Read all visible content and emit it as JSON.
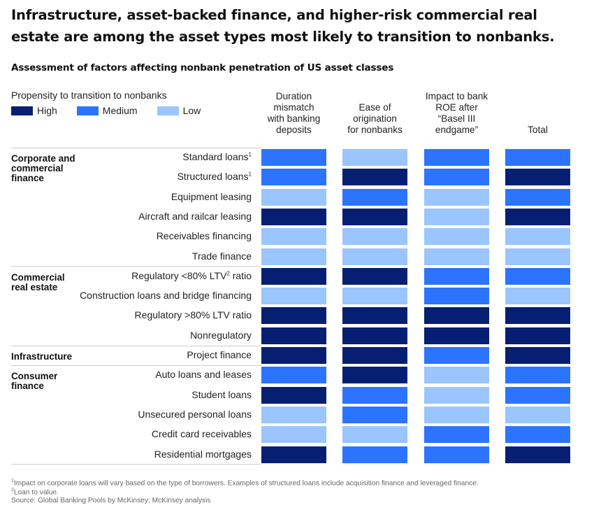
{
  "title": "Infrastructure, asset-backed finance, and higher-risk commercial real estate are among the asset types most likely to transition to nonbanks.",
  "subtitle": "Assessment of factors affecting nonbank penetration of US asset classes",
  "legend": {
    "title": "Propensity to transition to nonbanks",
    "items": [
      {
        "key": "H",
        "label": "High",
        "color": "#061F73"
      },
      {
        "key": "M",
        "label": "Medium",
        "color": "#2C74FF"
      },
      {
        "key": "L",
        "label": "Low",
        "color": "#9BC5FF"
      }
    ]
  },
  "columns": [
    [
      "Duration",
      "mismatch",
      "with banking",
      "deposits"
    ],
    [
      "Ease of",
      "origination",
      "for nonbanks"
    ],
    [
      "Impact to bank",
      "ROE after",
      "“Basel III",
      "endgame”"
    ],
    [
      "Total"
    ]
  ],
  "groups": [
    {
      "label": [
        "Corporate and",
        "commercial",
        "finance"
      ],
      "start": 0
    },
    {
      "label": [
        "Commercial",
        "real estate"
      ],
      "start": 6
    },
    {
      "label": [
        "Infrastructure"
      ],
      "start": 10
    },
    {
      "label": [
        "Consumer",
        "finance"
      ],
      "start": 11
    }
  ],
  "rows": [
    {
      "label": "Standard loans",
      "sup": "1",
      "values": [
        "M",
        "L",
        "M",
        "M"
      ]
    },
    {
      "label": "Structured loans",
      "sup": "1",
      "values": [
        "M",
        "H",
        "M",
        "H"
      ]
    },
    {
      "label": "Equipment leasing",
      "sup": "",
      "values": [
        "L",
        "M",
        "L",
        "M"
      ]
    },
    {
      "label": "Aircraft and railcar leasing",
      "sup": "",
      "values": [
        "H",
        "H",
        "L",
        "H"
      ]
    },
    {
      "label": "Receivables financing",
      "sup": "",
      "values": [
        "L",
        "L",
        "L",
        "L"
      ]
    },
    {
      "label": "Trade finance",
      "sup": "",
      "values": [
        "L",
        "L",
        "L",
        "L"
      ]
    },
    {
      "label": "Regulatory <80% LTV",
      "sup": "2",
      "suffix": " ratio",
      "values": [
        "H",
        "H",
        "M",
        "M"
      ]
    },
    {
      "label": "Construction loans and bridge financing",
      "sup": "",
      "values": [
        "L",
        "L",
        "M",
        "L"
      ]
    },
    {
      "label": "Regulatory >80% LTV ratio",
      "sup": "",
      "values": [
        "H",
        "H",
        "H",
        "H"
      ]
    },
    {
      "label": "Nonregulatory",
      "sup": "",
      "values": [
        "H",
        "H",
        "H",
        "H"
      ]
    },
    {
      "label": "Project finance",
      "sup": "",
      "values": [
        "H",
        "H",
        "M",
        "H"
      ]
    },
    {
      "label": "Auto loans and leases",
      "sup": "",
      "values": [
        "M",
        "H",
        "L",
        "M"
      ]
    },
    {
      "label": "Student loans",
      "sup": "",
      "values": [
        "H",
        "M",
        "L",
        "M"
      ]
    },
    {
      "label": "Unsecured personal loans",
      "sup": "",
      "values": [
        "L",
        "M",
        "L",
        "L"
      ]
    },
    {
      "label": "Credit card receivables",
      "sup": "",
      "values": [
        "L",
        "L",
        "M",
        "M"
      ]
    },
    {
      "label": "Residential mortgages",
      "sup": "",
      "values": [
        "H",
        "M",
        "M",
        "H"
      ]
    }
  ],
  "footnotes": [
    {
      "sup": "1",
      "text": "Impact on corporate loans will vary based on the type of borrowers. Examples of structured loans include acquisition finance and leveraged finance."
    },
    {
      "sup": "2",
      "text": "Loan to value."
    },
    {
      "sup": "",
      "text": "Source: Global Banking Pools by McKinsey; McKinsey analysis"
    }
  ],
  "chart_data": {
    "type": "heatmap",
    "title": "Assessment of factors affecting nonbank penetration of US asset classes",
    "scale": {
      "H": "High",
      "M": "Medium",
      "L": "Low"
    },
    "x": [
      "Duration mismatch with banking deposits",
      "Ease of origination for nonbanks",
      "Impact to bank ROE after “Basel III endgame”",
      "Total"
    ],
    "y": [
      "Standard loans",
      "Structured loans",
      "Equipment leasing",
      "Aircraft and railcar leasing",
      "Receivables financing",
      "Trade finance",
      "Regulatory <80% LTV ratio",
      "Construction loans and bridge financing",
      "Regulatory >80% LTV ratio",
      "Nonregulatory",
      "Project finance",
      "Auto loans and leases",
      "Student loans",
      "Unsecured personal loans",
      "Credit card receivables",
      "Residential mortgages"
    ],
    "categories_group": {
      "Corporate and commercial finance": [
        "Standard loans",
        "Structured loans",
        "Equipment leasing",
        "Aircraft and railcar leasing",
        "Receivables financing",
        "Trade finance"
      ],
      "Commercial real estate": [
        "Regulatory <80% LTV ratio",
        "Construction loans and bridge financing",
        "Regulatory >80% LTV ratio",
        "Nonregulatory"
      ],
      "Infrastructure": [
        "Project finance"
      ],
      "Consumer finance": [
        "Auto loans and leases",
        "Student loans",
        "Unsecured personal loans",
        "Credit card receivables",
        "Residential mortgages"
      ]
    },
    "values": [
      [
        "M",
        "L",
        "M",
        "M"
      ],
      [
        "M",
        "H",
        "M",
        "H"
      ],
      [
        "L",
        "M",
        "L",
        "M"
      ],
      [
        "H",
        "H",
        "L",
        "H"
      ],
      [
        "L",
        "L",
        "L",
        "L"
      ],
      [
        "L",
        "L",
        "L",
        "L"
      ],
      [
        "H",
        "H",
        "M",
        "M"
      ],
      [
        "L",
        "L",
        "M",
        "L"
      ],
      [
        "H",
        "H",
        "H",
        "H"
      ],
      [
        "H",
        "H",
        "H",
        "H"
      ],
      [
        "H",
        "H",
        "M",
        "H"
      ],
      [
        "M",
        "H",
        "L",
        "M"
      ],
      [
        "H",
        "M",
        "L",
        "M"
      ],
      [
        "L",
        "M",
        "L",
        "L"
      ],
      [
        "L",
        "L",
        "M",
        "M"
      ],
      [
        "H",
        "M",
        "M",
        "H"
      ]
    ],
    "legend": "top-left"
  }
}
